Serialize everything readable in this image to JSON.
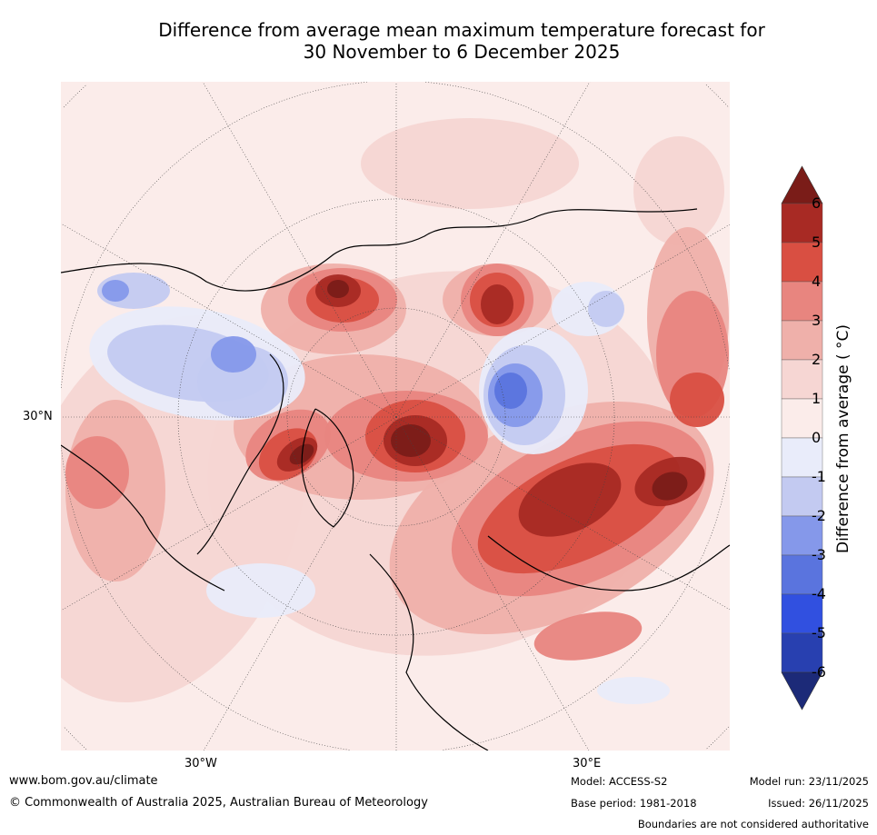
{
  "title": {
    "line1": "Difference from average mean maximum temperature forecast for",
    "line2": "30 November to 6 December 2025"
  },
  "map": {
    "lat_label": "30°N",
    "lon_labels": [
      "30°W",
      "30°E"
    ]
  },
  "colorbar": {
    "label": "Difference from average ( °C)",
    "ticks": [
      "6",
      "5",
      "4",
      "3",
      "2",
      "1",
      "0",
      "-1",
      "-2",
      "-3",
      "-4",
      "-5",
      "-6"
    ],
    "colors": {
      "above_6": "#7a1c18",
      "5_6": "#a82a24",
      "4_5": "#d94f42",
      "3_4": "#e8857f",
      "2_3": "#efb0aa",
      "1_2": "#f6d6d3",
      "0_1": "#fbecea",
      "m1_0": "#e9ecfa",
      "m2_m1": "#c3caf1",
      "m3_m2": "#8598ea",
      "m4_m3": "#5a74de",
      "m5_m4": "#3150e0",
      "m6_m5": "#2840b0",
      "below_m6": "#1c2a78"
    }
  },
  "footer": {
    "url": "www.bom.gov.au/climate",
    "copyright": "© Commonwealth of Australia 2025, Australian Bureau of Meteorology",
    "model": "Model: ACCESS-S2",
    "base_period": "Base period: 1981-2018",
    "model_run": "Model run: 23/11/2025",
    "issued": "Issued: 26/11/2025",
    "disclaimer": "Boundaries are not considered authoritative"
  }
}
